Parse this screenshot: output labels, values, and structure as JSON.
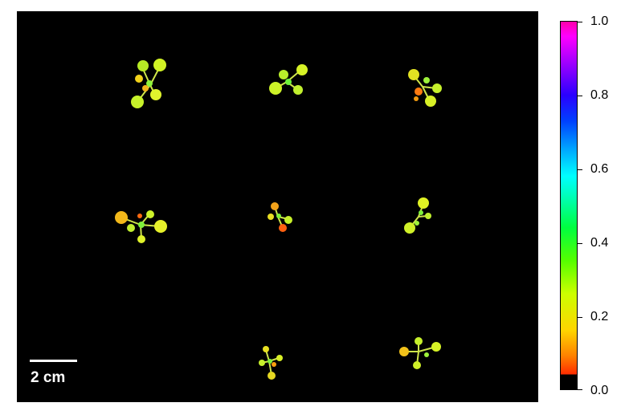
{
  "scalebar": {
    "label": "2 cm"
  },
  "colorbar": {
    "ticks": [
      "1.0",
      "0.8",
      "0.6",
      "0.4",
      "0.2",
      "0.0"
    ]
  },
  "plants": [
    {
      "id": "r1c1"
    },
    {
      "id": "r1c2"
    },
    {
      "id": "r1c3"
    },
    {
      "id": "r2c1"
    },
    {
      "id": "r2c2"
    },
    {
      "id": "r2c3"
    },
    {
      "id": "r3c2"
    },
    {
      "id": "r3c3"
    }
  ]
}
